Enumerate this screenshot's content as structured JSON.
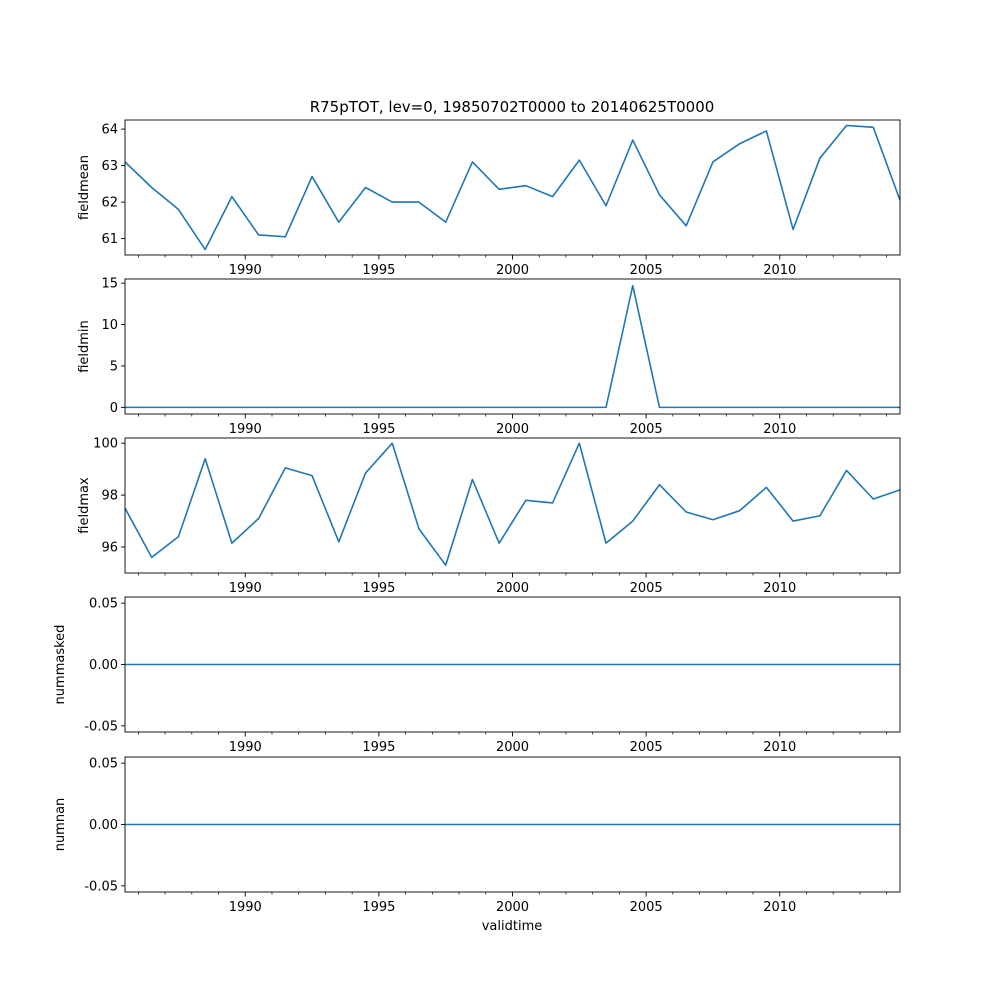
{
  "figure": {
    "title": "R75pTOT, lev=0, 19850702T0000 to 20140625T0000",
    "xlabel": "validtime",
    "line_color": "#1f77b4"
  },
  "chart_data": [
    {
      "type": "line",
      "ylabel": "fieldmean",
      "xlim": [
        1985.5,
        2014.5
      ],
      "ylim": [
        60.55,
        64.25
      ],
      "yticks": [
        "61",
        "62",
        "63",
        "64"
      ],
      "yticks_values": [
        61,
        62,
        63,
        64
      ],
      "xticks": [
        "1990",
        "1995",
        "2000",
        "2005",
        "2010"
      ],
      "xticks_values": [
        1990,
        1995,
        2000,
        2005,
        2010
      ],
      "series": [
        {
          "x": [
            1985.5,
            1986.5,
            1987.5,
            1988.5,
            1989.5,
            1990.5,
            1991.5,
            1992.5,
            1993.5,
            1994.5,
            1995.5,
            1996.5,
            1997.5,
            1998.5,
            1999.5,
            2000.5,
            2001.5,
            2002.5,
            2003.5,
            2004.5,
            2005.5,
            2006.5,
            2007.5,
            2008.5,
            2009.5,
            2010.5,
            2011.5,
            2012.5,
            2013.5,
            2014.5
          ],
          "values": [
            63.1,
            62.4,
            61.8,
            60.7,
            62.15,
            61.1,
            61.05,
            62.7,
            61.45,
            62.4,
            62.0,
            62.0,
            61.45,
            63.1,
            62.35,
            62.45,
            62.15,
            63.15,
            61.9,
            63.7,
            62.2,
            61.35,
            63.1,
            63.6,
            63.95,
            61.25,
            63.2,
            64.1,
            64.05,
            62.05
          ]
        }
      ]
    },
    {
      "type": "line",
      "ylabel": "fieldmin",
      "xlim": [
        1985.5,
        2014.5
      ],
      "ylim": [
        -0.8,
        15.5
      ],
      "yticks": [
        "0",
        "5",
        "10",
        "15"
      ],
      "yticks_values": [
        0,
        5,
        10,
        15
      ],
      "xticks": [
        "1990",
        "1995",
        "2000",
        "2005",
        "2010"
      ],
      "xticks_values": [
        1990,
        1995,
        2000,
        2005,
        2010
      ],
      "series": [
        {
          "x": [
            1985.5,
            1986.5,
            1987.5,
            1988.5,
            1989.5,
            1990.5,
            1991.5,
            1992.5,
            1993.5,
            1994.5,
            1995.5,
            1996.5,
            1997.5,
            1998.5,
            1999.5,
            2000.5,
            2001.5,
            2002.5,
            2003.5,
            2004.5,
            2005.5,
            2006.5,
            2007.5,
            2008.5,
            2009.5,
            2010.5,
            2011.5,
            2012.5,
            2013.5,
            2014.5
          ],
          "values": [
            0,
            0,
            0,
            0,
            0,
            0,
            0,
            0,
            0,
            0,
            0,
            0,
            0,
            0,
            0,
            0,
            0,
            0,
            0,
            14.7,
            0,
            0,
            0,
            0,
            0,
            0,
            0,
            0,
            0,
            0
          ]
        }
      ]
    },
    {
      "type": "line",
      "ylabel": "fieldmax",
      "xlim": [
        1985.5,
        2014.5
      ],
      "ylim": [
        95.0,
        100.2
      ],
      "yticks": [
        "96",
        "98",
        "100"
      ],
      "yticks_values": [
        96,
        98,
        100
      ],
      "xticks": [
        "1990",
        "1995",
        "2000",
        "2005",
        "2010"
      ],
      "xticks_values": [
        1990,
        1995,
        2000,
        2005,
        2010
      ],
      "series": [
        {
          "x": [
            1985.5,
            1986.5,
            1987.5,
            1988.5,
            1989.5,
            1990.5,
            1991.5,
            1992.5,
            1993.5,
            1994.5,
            1995.5,
            1996.5,
            1997.5,
            1998.5,
            1999.5,
            2000.5,
            2001.5,
            2002.5,
            2003.5,
            2004.5,
            2005.5,
            2006.5,
            2007.5,
            2008.5,
            2009.5,
            2010.5,
            2011.5,
            2012.5,
            2013.5,
            2014.5
          ],
          "values": [
            97.5,
            95.6,
            96.4,
            99.4,
            96.15,
            97.1,
            99.05,
            98.75,
            96.2,
            98.85,
            100.0,
            96.7,
            95.3,
            98.6,
            96.15,
            97.8,
            97.7,
            100.0,
            96.15,
            97.0,
            98.4,
            97.35,
            97.05,
            97.4,
            98.3,
            97.0,
            97.2,
            98.95,
            97.85,
            98.2
          ]
        }
      ]
    },
    {
      "type": "line",
      "ylabel": "nummasked",
      "xlim": [
        1985.5,
        2014.5
      ],
      "ylim": [
        -0.055,
        0.055
      ],
      "yticks": [
        "-0.05",
        "0.00",
        "0.05"
      ],
      "yticks_values": [
        -0.05,
        0.0,
        0.05
      ],
      "xticks": [
        "1990",
        "1995",
        "2000",
        "2005",
        "2010"
      ],
      "xticks_values": [
        1990,
        1995,
        2000,
        2005,
        2010
      ],
      "series": [
        {
          "x": [
            1985.5,
            2014.5
          ],
          "values": [
            0,
            0
          ]
        }
      ]
    },
    {
      "type": "line",
      "ylabel": "numnan",
      "xlim": [
        1985.5,
        2014.5
      ],
      "ylim": [
        -0.055,
        0.055
      ],
      "yticks": [
        "-0.05",
        "0.00",
        "0.05"
      ],
      "yticks_values": [
        -0.05,
        0.0,
        0.05
      ],
      "xticks": [
        "1990",
        "1995",
        "2000",
        "2005",
        "2010"
      ],
      "xticks_values": [
        1990,
        1995,
        2000,
        2005,
        2010
      ],
      "series": [
        {
          "x": [
            1985.5,
            2014.5
          ],
          "values": [
            0,
            0
          ]
        }
      ]
    }
  ]
}
